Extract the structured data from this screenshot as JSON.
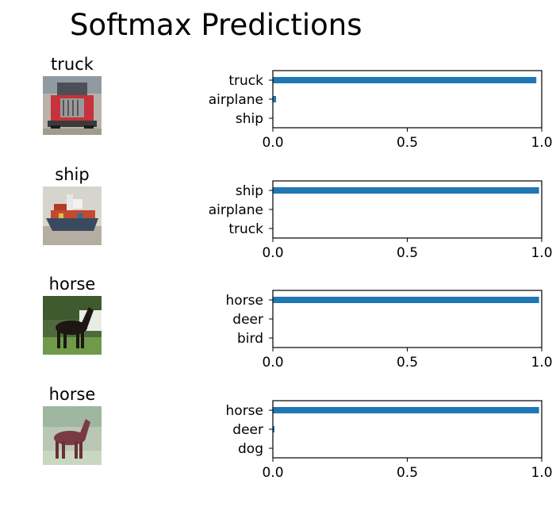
{
  "title": "Softmax Predictions",
  "bar_color": "#1f77b4",
  "chart_data": [
    {
      "type": "bar",
      "orientation": "horizontal",
      "image_title": "truck",
      "image_icon": "truck-image",
      "categories": [
        "truck",
        "airplane",
        "ship"
      ],
      "values": [
        0.98,
        0.012,
        0.001
      ],
      "xlim": [
        0.0,
        1.0
      ],
      "xticks": [
        "0.0",
        "0.5",
        "1.0"
      ]
    },
    {
      "type": "bar",
      "orientation": "horizontal",
      "image_title": "ship",
      "image_icon": "ship-image",
      "categories": [
        "ship",
        "airplane",
        "truck"
      ],
      "values": [
        0.99,
        0.001,
        0.0
      ],
      "xlim": [
        0.0,
        1.0
      ],
      "xticks": [
        "0.0",
        "0.5",
        "1.0"
      ]
    },
    {
      "type": "bar",
      "orientation": "horizontal",
      "image_title": "horse",
      "image_icon": "horse-image",
      "categories": [
        "horse",
        "deer",
        "bird"
      ],
      "values": [
        0.99,
        0.001,
        0.0
      ],
      "xlim": [
        0.0,
        1.0
      ],
      "xticks": [
        "0.0",
        "0.5",
        "1.0"
      ]
    },
    {
      "type": "bar",
      "orientation": "horizontal",
      "image_title": "horse",
      "image_icon": "horse-image",
      "categories": [
        "horse",
        "deer",
        "dog"
      ],
      "values": [
        0.99,
        0.006,
        0.001
      ],
      "xlim": [
        0.0,
        1.0
      ],
      "xticks": [
        "0.0",
        "0.5",
        "1.0"
      ]
    }
  ]
}
